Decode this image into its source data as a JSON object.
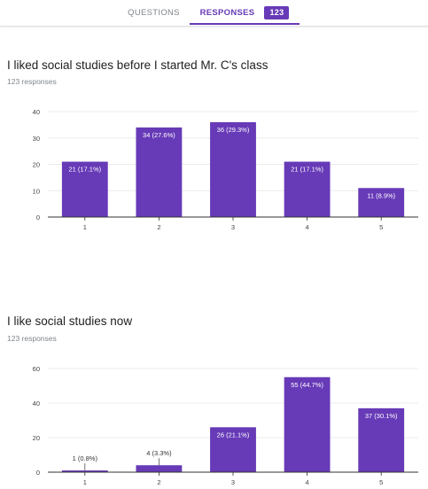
{
  "tabs": {
    "questions_label": "QUESTIONS",
    "responses_label": "RESPONSES",
    "responses_count": "123"
  },
  "questions": [
    {
      "title": "I liked social studies before I started Mr. C's class",
      "responses_text": "123 responses"
    },
    {
      "title": "I like social studies now",
      "responses_text": "123 responses"
    }
  ],
  "colors": {
    "bar": "#673ab7",
    "accent": "#673ab7",
    "grid": "#ececec",
    "axis": "#333333"
  },
  "chart_data": [
    {
      "type": "bar",
      "categories": [
        "1",
        "2",
        "3",
        "4",
        "5"
      ],
      "values": [
        21,
        34,
        36,
        21,
        11
      ],
      "labels": [
        "21 (17.1%)",
        "34 (27.6%)",
        "36 (29.3%)",
        "21 (17.1%)",
        "11 (8.9%)"
      ],
      "yticks": [
        "0",
        "10",
        "20",
        "30",
        "40"
      ],
      "ylim": [
        0,
        40
      ],
      "grid": true
    },
    {
      "type": "bar",
      "categories": [
        "1",
        "2",
        "3",
        "4",
        "5"
      ],
      "values": [
        1,
        4,
        26,
        55,
        37
      ],
      "labels": [
        "1 (0.8%)",
        "4 (3.3%)",
        "26 (21.1%)",
        "55 (44.7%)",
        "37 (30.1%)"
      ],
      "yticks": [
        "0",
        "20",
        "40",
        "60"
      ],
      "ylim": [
        0,
        60
      ],
      "grid": true
    }
  ]
}
